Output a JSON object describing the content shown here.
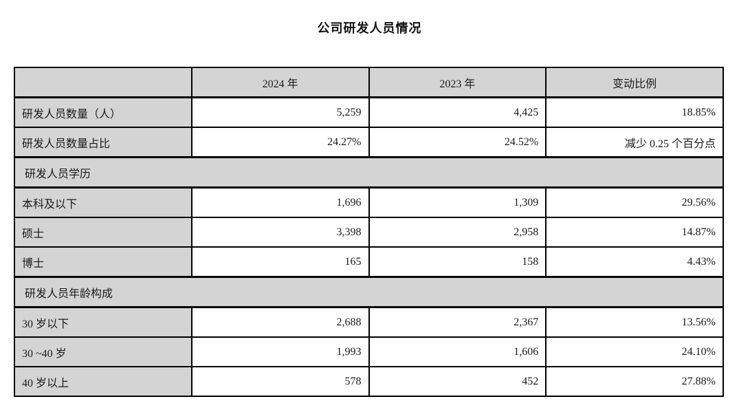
{
  "title": "公司研发人员情况",
  "colors": {
    "header_fill": "#d4d4d4",
    "border": "#000000",
    "text": "#1a1a1a"
  },
  "table": {
    "columns": [
      "",
      "2024 年",
      "2023 年",
      "变动比例"
    ],
    "rows": [
      {
        "type": "data",
        "label": "研发人员数量（人）",
        "v2024": "5,259",
        "v2023": "4,425",
        "change": "18.85%"
      },
      {
        "type": "data",
        "label": "研发人员数量占比",
        "v2024": "24.27%",
        "v2023": "24.52%",
        "change": "减少 0.25 个百分点"
      },
      {
        "type": "section",
        "label": "研发人员学历"
      },
      {
        "type": "data",
        "label": "本科及以下",
        "v2024": "1,696",
        "v2023": "1,309",
        "change": "29.56%"
      },
      {
        "type": "data",
        "label": "硕士",
        "v2024": "3,398",
        "v2023": "2,958",
        "change": "14.87%"
      },
      {
        "type": "data",
        "label": "博士",
        "v2024": "165",
        "v2023": "158",
        "change": "4.43%"
      },
      {
        "type": "section",
        "label": "研发人员年龄构成"
      },
      {
        "type": "data",
        "label": "30 岁以下",
        "v2024": "2,688",
        "v2023": "2,367",
        "change": "13.56%"
      },
      {
        "type": "data",
        "label": "30 ~40 岁",
        "v2024": "1,993",
        "v2023": "1,606",
        "change": "24.10%"
      },
      {
        "type": "data",
        "label": "40 岁以上",
        "v2024": "578",
        "v2023": "452",
        "change": "27.88%"
      }
    ]
  }
}
